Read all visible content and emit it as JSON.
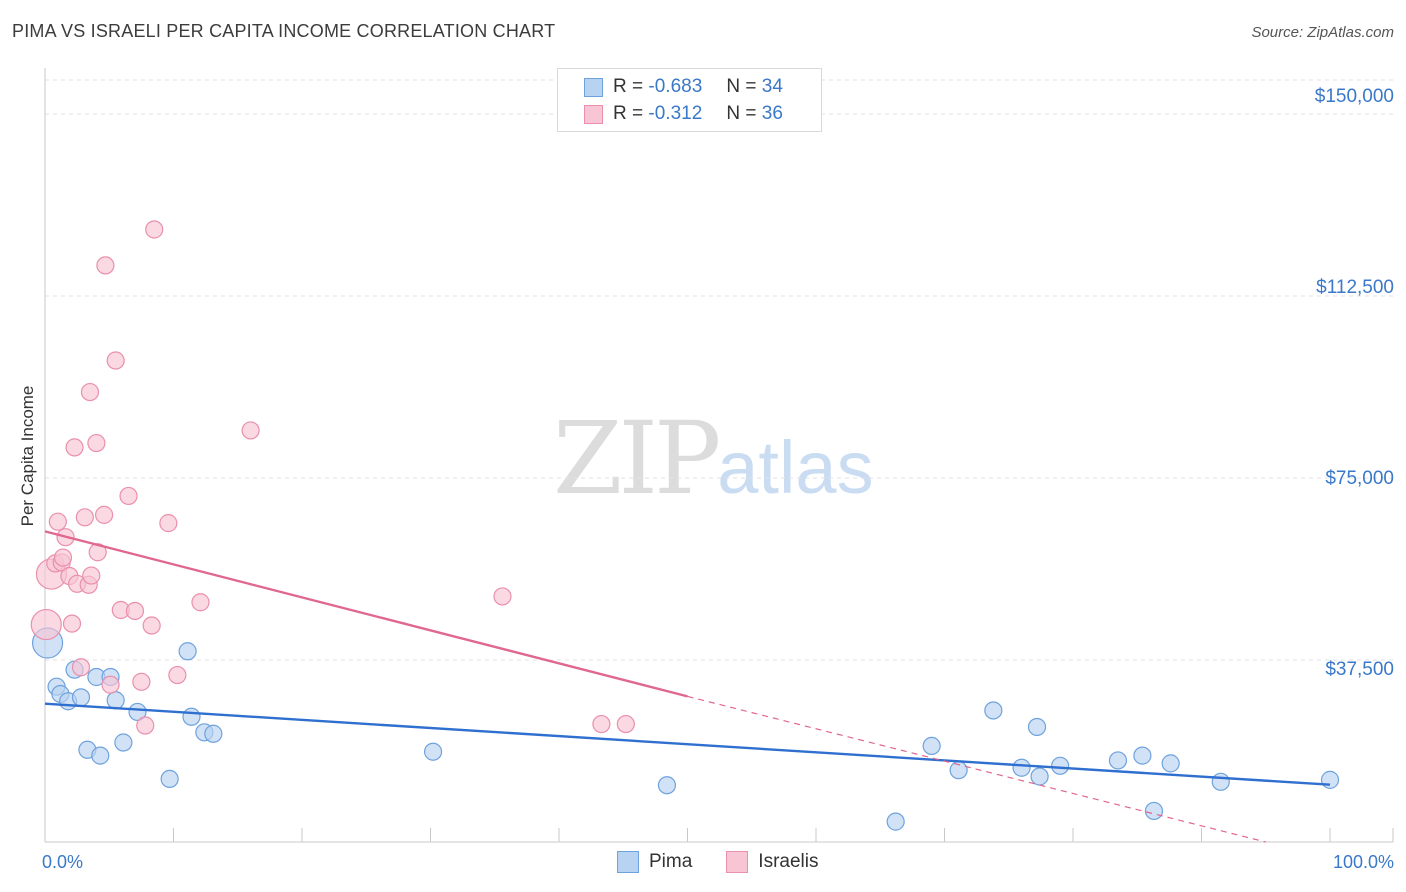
{
  "title": "PIMA VS ISRAELI PER CAPITA INCOME CORRELATION CHART",
  "source": "Source: ZipAtlas.com",
  "watermark": {
    "zip": "ZIP",
    "atlas": "atlas"
  },
  "legend": {
    "rows": [
      {
        "r_label": "R =",
        "r_value": "-0.683",
        "n_label": "N =",
        "n_value": "34"
      },
      {
        "r_label": "R =",
        "r_value": "-0.312",
        "n_label": "N =",
        "n_value": "36"
      }
    ]
  },
  "bottom_legend": {
    "pima": "Pima",
    "israelis": "Israelis"
  },
  "colors": {
    "pima_fill": "#b8d2f1",
    "pima_stroke": "#6ea2dd",
    "pima_line": "#2f6fcf",
    "israeli_fill": "#f8c5d4",
    "israeli_stroke": "#ea8fad",
    "israeli_line": "#e06790",
    "axis_text": "#3a78c9",
    "grid": "#e2e2e2"
  },
  "chart_data": {
    "type": "scatter",
    "title": "PIMA VS ISRAELI PER CAPITA INCOME CORRELATION CHART",
    "xlabel": "",
    "ylabel": "Per Capita Income",
    "xlim": [
      0,
      100
    ],
    "ylim": [
      0,
      157000
    ],
    "x_tick_labels": [
      "0.0%",
      "100.0%"
    ],
    "y_ticks": [
      {
        "value": 37500,
        "label": "$37,500"
      },
      {
        "value": 75000,
        "label": "$75,000"
      },
      {
        "value": 112500,
        "label": "$112,500"
      },
      {
        "value": 150000,
        "label": "$150,000"
      }
    ],
    "series": [
      {
        "name": "Pima",
        "points": [
          {
            "x": 0.2,
            "y": 41000,
            "big": true
          },
          {
            "x": 0.9,
            "y": 32000
          },
          {
            "x": 1.2,
            "y": 30500
          },
          {
            "x": 1.8,
            "y": 29000
          },
          {
            "x": 2.3,
            "y": 35500
          },
          {
            "x": 2.8,
            "y": 29800
          },
          {
            "x": 3.3,
            "y": 19000
          },
          {
            "x": 4.0,
            "y": 34000
          },
          {
            "x": 4.3,
            "y": 17800
          },
          {
            "x": 5.1,
            "y": 34000
          },
          {
            "x": 5.5,
            "y": 29200
          },
          {
            "x": 6.1,
            "y": 20500
          },
          {
            "x": 7.2,
            "y": 26800
          },
          {
            "x": 9.7,
            "y": 13000
          },
          {
            "x": 11.1,
            "y": 39300
          },
          {
            "x": 11.4,
            "y": 25800
          },
          {
            "x": 12.4,
            "y": 22600
          },
          {
            "x": 13.1,
            "y": 22300
          },
          {
            "x": 30.2,
            "y": 18600
          },
          {
            "x": 48.4,
            "y": 11700
          },
          {
            "x": 66.2,
            "y": 4200
          },
          {
            "x": 69.0,
            "y": 19800
          },
          {
            "x": 71.1,
            "y": 14800
          },
          {
            "x": 73.8,
            "y": 27100
          },
          {
            "x": 76.0,
            "y": 15300
          },
          {
            "x": 77.2,
            "y": 23700
          },
          {
            "x": 77.4,
            "y": 13500
          },
          {
            "x": 79.0,
            "y": 15700
          },
          {
            "x": 83.5,
            "y": 16800
          },
          {
            "x": 85.4,
            "y": 17800
          },
          {
            "x": 86.3,
            "y": 6400
          },
          {
            "x": 87.6,
            "y": 16200
          },
          {
            "x": 91.5,
            "y": 12400
          },
          {
            "x": 100.0,
            "y": 12800
          }
        ],
        "trend": {
          "x1": 0,
          "y1": 28500,
          "x2": 100,
          "y2": 11800
        }
      },
      {
        "name": "Israelis",
        "points": [
          {
            "x": 0.1,
            "y": 44800,
            "big": true
          },
          {
            "x": 0.5,
            "y": 55200,
            "big": true
          },
          {
            "x": 0.8,
            "y": 57400
          },
          {
            "x": 1.0,
            "y": 66000
          },
          {
            "x": 1.3,
            "y": 57600
          },
          {
            "x": 1.4,
            "y": 58600
          },
          {
            "x": 1.6,
            "y": 62800
          },
          {
            "x": 1.9,
            "y": 54800
          },
          {
            "x": 2.1,
            "y": 45000
          },
          {
            "x": 2.3,
            "y": 81300
          },
          {
            "x": 2.5,
            "y": 53200
          },
          {
            "x": 2.8,
            "y": 36000
          },
          {
            "x": 3.1,
            "y": 66900
          },
          {
            "x": 3.4,
            "y": 53000
          },
          {
            "x": 3.5,
            "y": 92700
          },
          {
            "x": 3.6,
            "y": 54900
          },
          {
            "x": 4.0,
            "y": 82200
          },
          {
            "x": 4.1,
            "y": 59700
          },
          {
            "x": 4.6,
            "y": 67400
          },
          {
            "x": 4.7,
            "y": 118800
          },
          {
            "x": 5.1,
            "y": 32400
          },
          {
            "x": 5.5,
            "y": 99200
          },
          {
            "x": 5.9,
            "y": 47800
          },
          {
            "x": 6.5,
            "y": 71300
          },
          {
            "x": 7.0,
            "y": 47600
          },
          {
            "x": 7.5,
            "y": 33000
          },
          {
            "x": 7.8,
            "y": 24000
          },
          {
            "x": 8.3,
            "y": 44600
          },
          {
            "x": 8.5,
            "y": 126200
          },
          {
            "x": 9.6,
            "y": 65700
          },
          {
            "x": 10.3,
            "y": 34400
          },
          {
            "x": 12.1,
            "y": 49400
          },
          {
            "x": 16.0,
            "y": 84800
          },
          {
            "x": 35.6,
            "y": 50600
          },
          {
            "x": 43.3,
            "y": 24300
          },
          {
            "x": 45.2,
            "y": 24300
          }
        ],
        "trend": {
          "x1": 0,
          "y1": 64000,
          "x2": 50,
          "y2": 30000
        },
        "trend_dashed": {
          "x1": 50,
          "y1": 30000,
          "x2": 95,
          "y2": 0
        }
      }
    ]
  }
}
